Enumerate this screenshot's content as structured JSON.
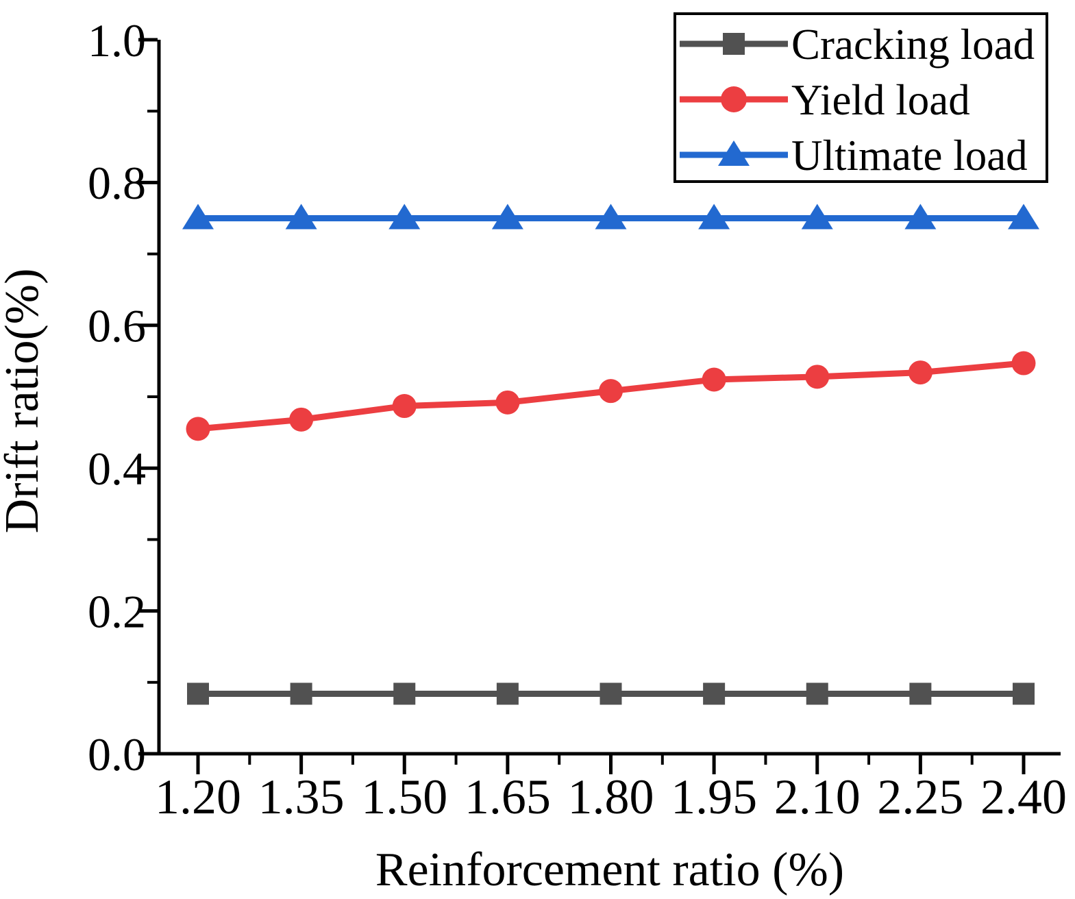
{
  "chart_data": {
    "type": "line",
    "title": "",
    "xlabel": "Reinforcement ratio (%)",
    "ylabel": "Drift ratio(%)",
    "x": [
      1.2,
      1.35,
      1.5,
      1.65,
      1.8,
      1.95,
      2.1,
      2.25,
      2.4
    ],
    "x_tick_labels": [
      "1.20",
      "1.35",
      "1.50",
      "1.65",
      "1.80",
      "1.95",
      "2.10",
      "2.25",
      "2.40"
    ],
    "y_ticks": [
      0.0,
      0.2,
      0.4,
      0.6,
      0.8,
      1.0
    ],
    "y_tick_labels": [
      "0.0",
      "0.2",
      "0.4",
      "0.6",
      "0.8",
      "1.0"
    ],
    "y_minor_ticks": [
      0.1,
      0.3,
      0.5,
      0.7,
      0.9
    ],
    "xlim": [
      1.143,
      2.454
    ],
    "ylim": [
      0.0,
      1.0
    ],
    "grid": false,
    "legend_position": "top-right-inside",
    "axis_color": "#000000",
    "background_color": "#ffffff",
    "series": [
      {
        "name": "Cracking load",
        "marker": "square",
        "color": "#515151",
        "values": [
          0.084,
          0.084,
          0.084,
          0.084,
          0.084,
          0.084,
          0.084,
          0.084,
          0.084
        ]
      },
      {
        "name": "Yield load",
        "marker": "circle",
        "color": "#EC3E41",
        "values": [
          0.455,
          0.468,
          0.487,
          0.492,
          0.508,
          0.524,
          0.528,
          0.534,
          0.547
        ]
      },
      {
        "name": "Ultimate load",
        "marker": "triangle",
        "color": "#2269D0",
        "values": [
          0.75,
          0.75,
          0.75,
          0.75,
          0.75,
          0.75,
          0.75,
          0.75,
          0.75
        ]
      }
    ]
  }
}
